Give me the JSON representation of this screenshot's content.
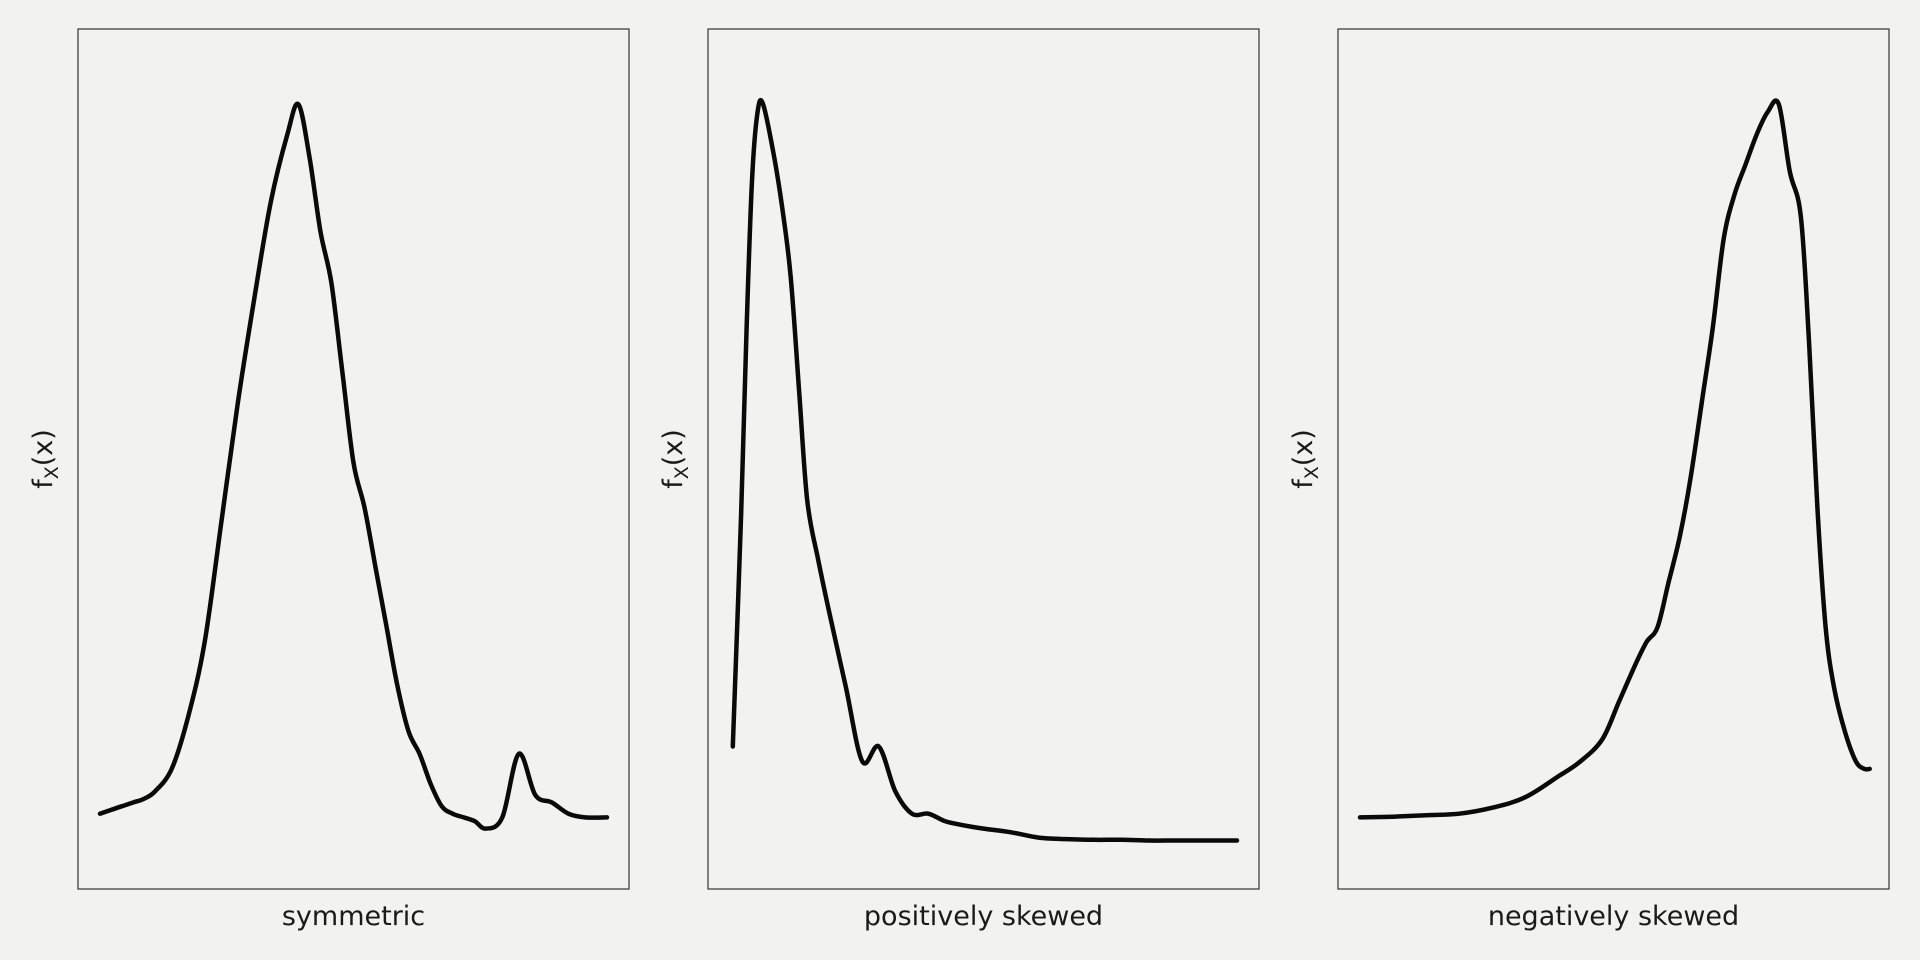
{
  "figure": {
    "background": "#f2f2f0",
    "line_color": "#0a0a0a",
    "frame_color": "#333333"
  },
  "chart_data": [
    {
      "type": "line",
      "title": "",
      "xlabel": "symmetric",
      "ylabel_base": "f",
      "ylabel_sub": "X",
      "ylabel_arg": "(x)",
      "grid": false,
      "xlim": [
        0,
        1
      ],
      "ylim": [
        0,
        1.05
      ],
      "series": [
        {
          "x": [
            0.04,
            0.06,
            0.08,
            0.1,
            0.12,
            0.14,
            0.17,
            0.2,
            0.23,
            0.26,
            0.29,
            0.32,
            0.35,
            0.38,
            0.4,
            0.42,
            0.44,
            0.46,
            0.48,
            0.5,
            0.52,
            0.54,
            0.56,
            0.58,
            0.6,
            0.62,
            0.64,
            0.66,
            0.68,
            0.7,
            0.72,
            0.74,
            0.77,
            0.8,
            0.83,
            0.86,
            0.89,
            0.92,
            0.96
          ],
          "y": [
            0.05,
            0.055,
            0.06,
            0.065,
            0.07,
            0.08,
            0.11,
            0.18,
            0.28,
            0.44,
            0.6,
            0.74,
            0.87,
            0.96,
            1.0,
            0.93,
            0.83,
            0.76,
            0.64,
            0.52,
            0.46,
            0.38,
            0.3,
            0.22,
            0.16,
            0.13,
            0.09,
            0.06,
            0.05,
            0.045,
            0.04,
            0.03,
            0.045,
            0.13,
            0.075,
            0.065,
            0.05,
            0.045,
            0.045
          ]
        }
      ]
    },
    {
      "type": "line",
      "title": "",
      "xlabel": "positively skewed",
      "ylabel_base": "f",
      "ylabel_sub": "X",
      "ylabel_arg": "(x)",
      "grid": false,
      "xlim": [
        0,
        1
      ],
      "ylim": [
        0,
        1.05
      ],
      "series": [
        {
          "x": [
            0.045,
            0.06,
            0.07,
            0.08,
            0.09,
            0.1,
            0.12,
            0.135,
            0.15,
            0.165,
            0.18,
            0.2,
            0.22,
            0.25,
            0.28,
            0.31,
            0.34,
            0.37,
            0.4,
            0.43,
            0.46,
            0.5,
            0.55,
            0.6,
            0.65,
            0.7,
            0.75,
            0.8,
            0.85,
            0.9,
            0.96
          ],
          "y": [
            0.14,
            0.45,
            0.7,
            0.9,
            0.99,
            1.0,
            0.93,
            0.86,
            0.77,
            0.62,
            0.47,
            0.39,
            0.32,
            0.22,
            0.12,
            0.14,
            0.08,
            0.05,
            0.05,
            0.04,
            0.035,
            0.03,
            0.025,
            0.018,
            0.016,
            0.015,
            0.015,
            0.014,
            0.014,
            0.014,
            0.014
          ]
        }
      ]
    },
    {
      "type": "line",
      "title": "",
      "xlabel": "negatively skewed",
      "ylabel_base": "f",
      "ylabel_sub": "X",
      "ylabel_arg": "(x)",
      "grid": false,
      "xlim": [
        0,
        1
      ],
      "ylim": [
        0,
        1.05
      ],
      "series": [
        {
          "x": [
            0.04,
            0.1,
            0.16,
            0.22,
            0.28,
            0.34,
            0.4,
            0.44,
            0.48,
            0.51,
            0.54,
            0.56,
            0.58,
            0.6,
            0.62,
            0.64,
            0.66,
            0.68,
            0.7,
            0.72,
            0.74,
            0.76,
            0.78,
            0.8,
            0.82,
            0.84,
            0.855,
            0.87,
            0.885,
            0.9,
            0.92,
            0.94,
            0.955,
            0.965
          ],
          "y": [
            0.045,
            0.046,
            0.048,
            0.05,
            0.058,
            0.072,
            0.1,
            0.12,
            0.15,
            0.2,
            0.25,
            0.28,
            0.3,
            0.36,
            0.42,
            0.5,
            0.6,
            0.7,
            0.82,
            0.88,
            0.92,
            0.96,
            0.99,
            1.0,
            0.91,
            0.85,
            0.68,
            0.46,
            0.3,
            0.22,
            0.16,
            0.12,
            0.11,
            0.11
          ]
        }
      ]
    }
  ]
}
